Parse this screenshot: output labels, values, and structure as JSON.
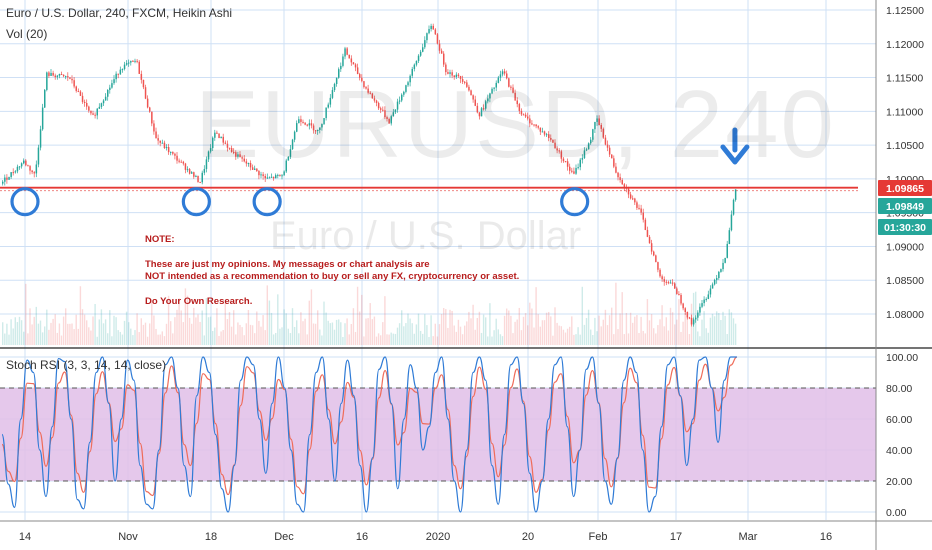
{
  "header": {
    "title": "Euro / U.S. Dollar, 240, FXCM, Heikin Ashi",
    "volume_label": "Vol (20)",
    "indicator_label": "Stoch RSI (3, 3, 14, 14, close)"
  },
  "watermark": {
    "symbol": "EURUSD, 240",
    "name": "Euro / U.S. Dollar"
  },
  "note": {
    "title": "NOTE:",
    "line1": "These are just my opinions. My messages or chart analysis are",
    "line2": "NOT intended as a recommendation to buy or sell any FX, cryptocurrency or asset.",
    "line3": "Do Your Own Research."
  },
  "badges": [
    {
      "text": "1.09865",
      "color": "#e53935"
    },
    {
      "text": "1.09849",
      "color": "#26a69a"
    },
    {
      "text": "01:30:30",
      "color": "#26a69a"
    }
  ],
  "colors": {
    "up": "#26a69a",
    "down": "#ef5350",
    "support_line": "#e53935",
    "markers": "#2f7bd6",
    "stoch_k": "#2f7bd6",
    "stoch_d": "#ef6c5a",
    "stoch_band": "#e1bee7"
  },
  "chart_data": [
    {
      "type": "candlestick",
      "title": "Euro / U.S. Dollar, 240, FXCM, Heikin Ashi",
      "x_ticks": [
        "14",
        "Nov",
        "18",
        "Dec",
        "16",
        "2020",
        "20",
        "Feb",
        "17",
        "Mar",
        "16"
      ],
      "y_ticks": [
        1.08,
        1.085,
        1.09,
        1.095,
        1.1,
        1.105,
        1.11,
        1.115,
        1.12,
        1.125
      ],
      "ylim": [
        1.077,
        1.1265
      ],
      "support_level": 1.0987,
      "price_labels": [
        1.09865,
        1.09849
      ],
      "countdown": "01:30:30",
      "markers": [
        "Oct 14 2019",
        "Nov 15 2019",
        "Nov 28 2019",
        "Jan 28 2020"
      ],
      "arrow_at": "Feb 28 2020",
      "path_keypoints": [
        {
          "date": "2019-10-10",
          "price": 1.0993
        },
        {
          "date": "2019-10-14",
          "price": 1.1026
        },
        {
          "date": "2019-10-16",
          "price": 1.1005
        },
        {
          "date": "2019-10-18",
          "price": 1.1155
        },
        {
          "date": "2019-10-22",
          "price": 1.115
        },
        {
          "date": "2019-10-26",
          "price": 1.109
        },
        {
          "date": "2019-10-31",
          "price": 1.1165
        },
        {
          "date": "2019-11-03",
          "price": 1.1175
        },
        {
          "date": "2019-11-07",
          "price": 1.106
        },
        {
          "date": "2019-11-14",
          "price": 1.101
        },
        {
          "date": "2019-11-16",
          "price": 1.0995
        },
        {
          "date": "2019-11-19",
          "price": 1.107
        },
        {
          "date": "2019-11-22",
          "price": 1.104
        },
        {
          "date": "2019-11-28",
          "price": 1.1
        },
        {
          "date": "2019-12-01",
          "price": 1.1005
        },
        {
          "date": "2019-12-04",
          "price": 1.109
        },
        {
          "date": "2019-12-08",
          "price": 1.107
        },
        {
          "date": "2019-12-13",
          "price": 1.119
        },
        {
          "date": "2019-12-17",
          "price": 1.1135
        },
        {
          "date": "2019-12-22",
          "price": 1.1085
        },
        {
          "date": "2019-12-26",
          "price": 1.1145
        },
        {
          "date": "2019-12-31",
          "price": 1.123
        },
        {
          "date": "2020-01-03",
          "price": 1.116
        },
        {
          "date": "2020-01-07",
          "price": 1.1145
        },
        {
          "date": "2020-01-10",
          "price": 1.1095
        },
        {
          "date": "2020-01-15",
          "price": 1.116
        },
        {
          "date": "2020-01-19",
          "price": 1.1095
        },
        {
          "date": "2020-01-24",
          "price": 1.106
        },
        {
          "date": "2020-01-28",
          "price": 1.1005
        },
        {
          "date": "2020-01-31",
          "price": 1.106
        },
        {
          "date": "2020-02-01",
          "price": 1.109
        },
        {
          "date": "2020-02-05",
          "price": 1.101
        },
        {
          "date": "2020-02-10",
          "price": 1.095
        },
        {
          "date": "2020-02-14",
          "price": 1.0855
        },
        {
          "date": "2020-02-17",
          "price": 1.084
        },
        {
          "date": "2020-02-20",
          "price": 1.0785
        },
        {
          "date": "2020-02-23",
          "price": 1.083
        },
        {
          "date": "2020-02-26",
          "price": 1.088
        },
        {
          "date": "2020-02-28",
          "price": 1.0985
        }
      ]
    },
    {
      "type": "line",
      "title": "Stoch RSI (3, 3, 14, 14, close)",
      "y_ticks": [
        0,
        20,
        40,
        60,
        80,
        100
      ],
      "ylim": [
        -3,
        103
      ],
      "band": [
        20,
        80
      ],
      "series": [
        {
          "values": [
            50,
            18,
            3,
            60,
            98,
            90,
            40,
            10,
            55,
            99,
            97,
            60,
            8,
            2,
            45,
            90,
            100,
            70,
            20,
            60,
            98,
            85,
            30,
            5,
            2,
            40,
            95,
            100,
            80,
            30,
            10,
            75,
            100,
            90,
            50,
            15,
            0,
            30,
            85,
            100,
            95,
            60,
            25,
            70,
            100,
            80,
            40,
            5,
            0,
            50,
            90,
            100,
            60,
            20,
            70,
            98,
            75,
            30,
            0,
            35,
            92,
            100,
            70,
            15,
            60,
            95,
            80,
            40,
            55,
            90,
            100,
            60,
            20,
            0,
            40,
            90,
            100,
            85,
            30,
            5,
            50,
            95,
            100,
            70,
            25,
            0,
            20,
            60,
            95,
            100,
            55,
            10,
            40,
            92,
            100,
            70,
            20,
            5,
            35,
            85,
            100,
            90,
            40,
            0,
            10,
            55,
            95,
            100,
            75,
            30,
            60,
            98,
            100,
            80,
            45,
            85,
            100,
            100
          ]
        }
      ]
    }
  ]
}
